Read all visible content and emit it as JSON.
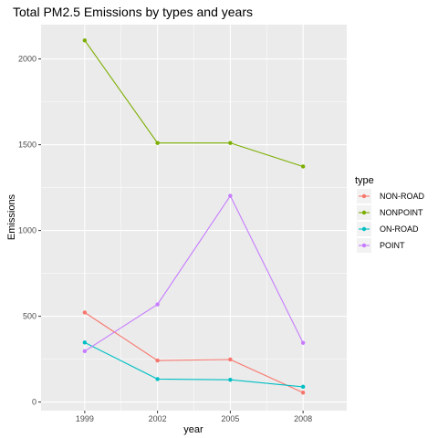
{
  "chart_data": {
    "type": "line",
    "title": "Total PM2.5 Emissions by types and years",
    "xlabel": "year",
    "ylabel": "Emissions",
    "x": [
      "1999",
      "2002",
      "2005",
      "2008"
    ],
    "ylim": [
      -50,
      2200
    ],
    "yticks": [
      0,
      500,
      1000,
      1500,
      2000
    ],
    "grid": true,
    "legend": {
      "title": "type",
      "placement": "right"
    },
    "series": [
      {
        "name": "NON-ROAD",
        "color": "#F8766D",
        "values": [
          522,
          242,
          248,
          55
        ]
      },
      {
        "name": "NONPOINT",
        "color": "#7CAE00",
        "values": [
          2108,
          1510,
          1510,
          1373
        ]
      },
      {
        "name": "ON-ROAD",
        "color": "#00BFC4",
        "values": [
          347,
          134,
          130,
          89
        ]
      },
      {
        "name": "POINT",
        "color": "#C77CFF",
        "values": [
          297,
          569,
          1202,
          345
        ]
      }
    ]
  }
}
